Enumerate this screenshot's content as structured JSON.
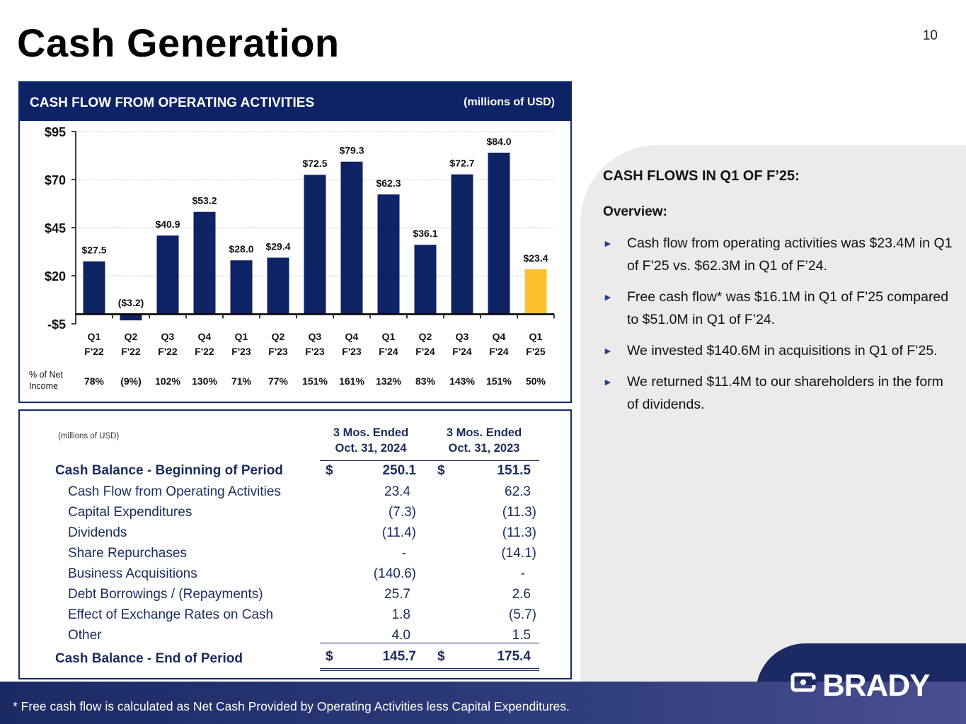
{
  "title": "Cash Generation",
  "page_number": "10",
  "chart_panel": {
    "title": "CASH FLOW FROM OPERATING ACTIVITIES",
    "units": "(millions of USD)",
    "pct_label_line1": "% of Net",
    "pct_label_line2": "Income"
  },
  "chart_data": {
    "type": "bar",
    "title": "CASH FLOW FROM OPERATING ACTIVITIES",
    "ylabel": "millions of USD",
    "ylim": [
      -5,
      95
    ],
    "yticks": [
      -5,
      20,
      45,
      70,
      95
    ],
    "ytick_labels": [
      "-$5",
      "$20",
      "$45",
      "$70",
      "$95"
    ],
    "categories": [
      [
        "Q1",
        "F'22"
      ],
      [
        "Q2",
        "F'22"
      ],
      [
        "Q3",
        "F'22"
      ],
      [
        "Q4",
        "F'22"
      ],
      [
        "Q1",
        "F'23"
      ],
      [
        "Q2",
        "F'23"
      ],
      [
        "Q3",
        "F'23"
      ],
      [
        "Q4",
        "F'23"
      ],
      [
        "Q1",
        "F'24"
      ],
      [
        "Q2",
        "F'24"
      ],
      [
        "Q3",
        "F'24"
      ],
      [
        "Q4",
        "F'24"
      ],
      [
        "Q1",
        "F'25"
      ]
    ],
    "values": [
      27.5,
      -3.2,
      40.9,
      53.2,
      28.0,
      29.4,
      72.5,
      79.3,
      62.3,
      36.1,
      72.7,
      84.0,
      23.4
    ],
    "value_labels": [
      "$27.5",
      "($3.2)",
      "$40.9",
      "$53.2",
      "$28.0",
      "$29.4",
      "$72.5",
      "$79.3",
      "$62.3",
      "$36.1",
      "$72.7",
      "$84.0",
      "$23.4"
    ],
    "pct_of_net_income": [
      "78%",
      "(9%)",
      "102%",
      "130%",
      "71%",
      "77%",
      "151%",
      "161%",
      "132%",
      "83%",
      "143%",
      "151%",
      "50%"
    ],
    "highlight_index": 12,
    "colors": {
      "bar": "#0e2266",
      "highlight": "#fcc22d"
    },
    "grid": true
  },
  "table": {
    "units": "(millions of USD)",
    "col1_header": [
      "3 Mos. Ended",
      "Oct. 31, 2024"
    ],
    "col2_header": [
      "3 Mos. Ended",
      "Oct. 31, 2023"
    ],
    "currency": "$",
    "begin": {
      "label": "Cash Balance - Beginning of Period",
      "v1": "250.1",
      "v2": "151.5"
    },
    "rows": [
      {
        "label": "Cash Flow from Operating Activities",
        "v1": "23.4",
        "v2": "62.3"
      },
      {
        "label": "Capital Expenditures",
        "v1": "(7.3)",
        "v2": "(11.3)"
      },
      {
        "label": "Dividends",
        "v1": "(11.4)",
        "v2": "(11.3)"
      },
      {
        "label": "Share Repurchases",
        "v1": "-",
        "v2": "(14.1)"
      },
      {
        "label": "Business Acquisitions",
        "v1": "(140.6)",
        "v2": "-"
      },
      {
        "label": "Debt Borrowings / (Repayments)",
        "v1": "25.7",
        "v2": "2.6"
      },
      {
        "label": "Effect of Exchange Rates on Cash",
        "v1": "1.8",
        "v2": "(5.7)"
      },
      {
        "label": "Other",
        "v1": "4.0",
        "v2": "1.5"
      }
    ],
    "end": {
      "label": "Cash Balance - End of Period",
      "v1": "145.7",
      "v2": "175.4"
    }
  },
  "summary": {
    "heading": "CASH FLOWS IN Q1 OF F’25:",
    "overview": "Overview:",
    "bullets": [
      "Cash flow from operating activities was $23.4M in Q1 of F’25 vs. $62.3M in Q1 of F’24.",
      "Free cash flow* was $16.1M in Q1 of F’25 compared to $51.0M in Q1 of F’24.",
      "We invested $140.6M in acquisitions in Q1 of F’25.",
      "We returned $11.4M to our shareholders in the form of dividends."
    ]
  },
  "footnote": "*    Free cash flow is calculated as Net Cash Provided by Operating Activities less Capital Expenditures.",
  "logo_text": "BRADY"
}
